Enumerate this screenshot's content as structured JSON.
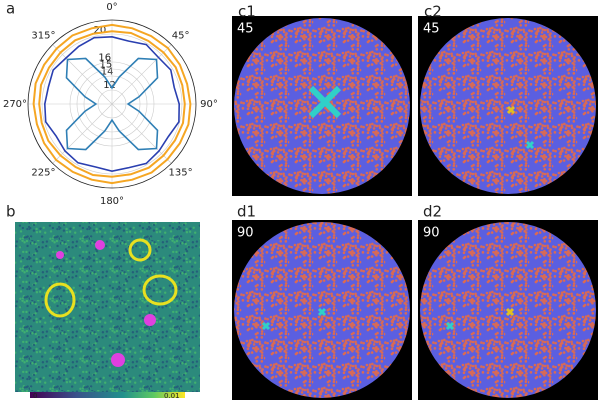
{
  "panels": {
    "a": "a",
    "b": "b",
    "c1": "c1",
    "c2": "c2",
    "d1": "d1",
    "d2": "d2"
  },
  "images": {
    "c1": "45",
    "c2": "45",
    "d1": "90",
    "d2": "90"
  },
  "colorbar": {
    "min": "0",
    "max": "0.01"
  },
  "chart_data": {
    "type": "polar",
    "theta": [
      0,
      15,
      30,
      45,
      60,
      75,
      90,
      105,
      120,
      135,
      150,
      165,
      180,
      195,
      210,
      225,
      240,
      255,
      270,
      285,
      300,
      315,
      330,
      345
    ],
    "thetaticks": [
      {
        "value": 0,
        "label": "0°"
      },
      {
        "value": 45,
        "label": "45°"
      },
      {
        "value": 90,
        "label": "90°"
      },
      {
        "value": 135,
        "label": "135°"
      },
      {
        "value": 180,
        "label": "180°"
      },
      {
        "value": 225,
        "label": "225°"
      },
      {
        "value": 270,
        "label": "270°"
      },
      {
        "value": 315,
        "label": "315°"
      }
    ],
    "rlim": [
      10,
      22
    ],
    "rticks": [
      12,
      14,
      15,
      16,
      20
    ],
    "series": [
      {
        "color": "#f5a623",
        "values": [
          21.3,
          21.2,
          21.2,
          21.3,
          21.2,
          21.1,
          21.2,
          21.3,
          21.2,
          21.2,
          21.3,
          21.2,
          21.3,
          21.2,
          21.2,
          21.3,
          21.2,
          21.1,
          21.2,
          21.3,
          21.2,
          21.2,
          21.3,
          21.2
        ]
      },
      {
        "color": "#f5a623",
        "values": [
          20.4,
          20.5,
          20.4,
          20.4,
          20.5,
          20.4,
          20.4,
          20.5,
          20.4,
          20.4,
          20.5,
          20.4,
          20.4,
          20.5,
          20.4,
          20.4,
          20.5,
          20.4,
          20.4,
          20.5,
          20.4,
          20.4,
          20.5,
          20.4
        ]
      },
      {
        "color": "#2a3fb0",
        "values": [
          19.6,
          19.3,
          19.8,
          19.4,
          19.7,
          19.2,
          19.6,
          19.9,
          19.3,
          19.5,
          19.8,
          19.4,
          19.6,
          19.3,
          19.7,
          19.5,
          19.2,
          19.8,
          19.6,
          19.4,
          19.7,
          19.3,
          19.5,
          19.8
        ]
      },
      {
        "color": "#2f7fb5",
        "values": [
          12.3,
          14.0,
          17.5,
          19.0,
          17.5,
          14.0,
          12.3,
          14.0,
          17.5,
          19.0,
          17.5,
          14.0,
          12.3,
          14.0,
          17.5,
          19.0,
          17.5,
          14.0,
          12.3,
          14.0,
          17.5,
          19.0,
          17.5,
          14.0
        ]
      }
    ]
  }
}
